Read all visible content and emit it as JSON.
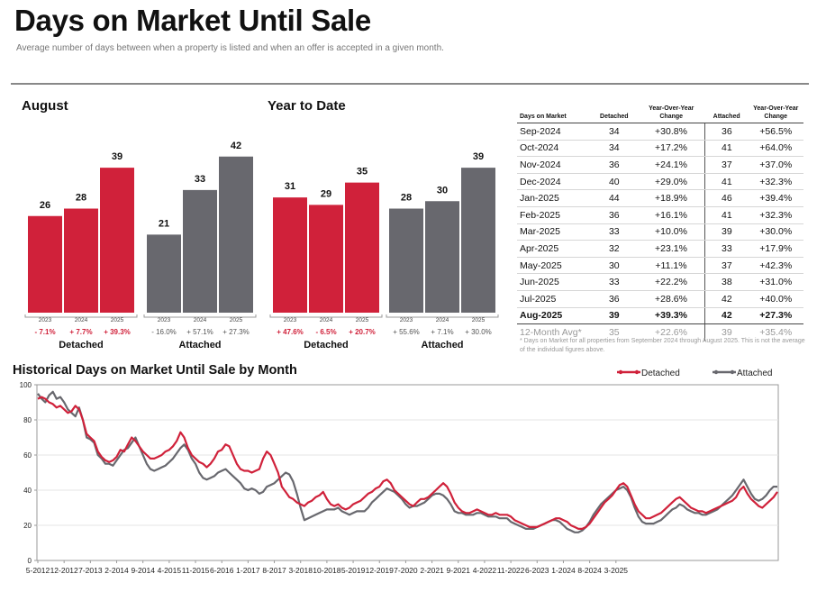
{
  "header": {
    "title": "Days on Market Until Sale",
    "subtitle": "Average number of days between when a property is listed and when an offer is accepted in a given month."
  },
  "colors": {
    "detached": "#d0213a",
    "attached": "#68686e"
  },
  "bar_panels": [
    {
      "title": "August",
      "groups": [
        {
          "label": "Detached",
          "color": "detached",
          "years": [
            "2023",
            "2024",
            "2025"
          ],
          "values": [
            26,
            28,
            39
          ],
          "changes": [
            "- 7.1%",
            "+ 7.7%",
            "+ 39.3%"
          ],
          "change_color": "red"
        },
        {
          "label": "Attached",
          "color": "attached",
          "years": [
            "2023",
            "2024",
            "2025"
          ],
          "values": [
            21,
            33,
            42
          ],
          "changes": [
            "- 16.0%",
            "+ 57.1%",
            "+ 27.3%"
          ],
          "change_color": "gray"
        }
      ]
    },
    {
      "title": "Year to Date",
      "groups": [
        {
          "label": "Detached",
          "color": "detached",
          "years": [
            "2023",
            "2024",
            "2025"
          ],
          "values": [
            31,
            29,
            35
          ],
          "changes": [
            "+ 47.6%",
            "- 6.5%",
            "+ 20.7%"
          ],
          "change_color": "red"
        },
        {
          "label": "Attached",
          "color": "attached",
          "years": [
            "2023",
            "2024",
            "2025"
          ],
          "values": [
            28,
            30,
            39
          ],
          "changes": [
            "+ 55.6%",
            "+ 7.1%",
            "+ 30.0%"
          ],
          "change_color": "gray"
        }
      ]
    }
  ],
  "table": {
    "headers": [
      "Days on Market",
      "Detached",
      "Year-Over-Year Change",
      "Attached",
      "Year-Over-Year Change"
    ],
    "rows": [
      [
        "Sep-2024",
        "34",
        "+30.8%",
        "36",
        "+56.5%"
      ],
      [
        "Oct-2024",
        "34",
        "+17.2%",
        "41",
        "+64.0%"
      ],
      [
        "Nov-2024",
        "36",
        "+24.1%",
        "37",
        "+37.0%"
      ],
      [
        "Dec-2024",
        "40",
        "+29.0%",
        "41",
        "+32.3%"
      ],
      [
        "Jan-2025",
        "44",
        "+18.9%",
        "46",
        "+39.4%"
      ],
      [
        "Feb-2025",
        "36",
        "+16.1%",
        "41",
        "+32.3%"
      ],
      [
        "Mar-2025",
        "33",
        "+10.0%",
        "39",
        "+30.0%"
      ],
      [
        "Apr-2025",
        "32",
        "+23.1%",
        "33",
        "+17.9%"
      ],
      [
        "May-2025",
        "30",
        "+11.1%",
        "37",
        "+42.3%"
      ],
      [
        "Jun-2025",
        "33",
        "+22.2%",
        "38",
        "+31.0%"
      ],
      [
        "Jul-2025",
        "36",
        "+28.6%",
        "42",
        "+40.0%"
      ],
      [
        "Aug-2025",
        "39",
        "+39.3%",
        "42",
        "+27.3%"
      ]
    ],
    "avg_row": [
      "12-Month Avg*",
      "35",
      "+22.6%",
      "39",
      "+35.4%"
    ],
    "footnote": "* Days on Market for all properties from September 2024 through August 2025. This is not the average of the individual figures above."
  },
  "chart_data": [
    {
      "type": "bar",
      "title": "August",
      "categories": [
        "2023",
        "2024",
        "2025"
      ],
      "series": [
        {
          "name": "Detached",
          "values": [
            26,
            28,
            39
          ]
        },
        {
          "name": "Attached",
          "values": [
            21,
            33,
            42
          ]
        }
      ]
    },
    {
      "type": "bar",
      "title": "Year to Date",
      "categories": [
        "2023",
        "2024",
        "2025"
      ],
      "series": [
        {
          "name": "Detached",
          "values": [
            31,
            29,
            35
          ]
        },
        {
          "name": "Attached",
          "values": [
            28,
            30,
            39
          ]
        }
      ]
    },
    {
      "type": "line",
      "title": "Historical Days on Market Until Sale by Month",
      "ylim": [
        0,
        100
      ],
      "yticks": [
        0,
        20,
        40,
        60,
        80,
        100
      ],
      "xticks": [
        "5-2012",
        "12-2012",
        "7-2013",
        "2-2014",
        "9-2014",
        "4-2015",
        "11-2015",
        "6-2016",
        "1-2017",
        "8-2017",
        "3-2018",
        "10-2018",
        "5-2019",
        "12-2019",
        "7-2020",
        "2-2021",
        "9-2021",
        "4-2022",
        "11-2022",
        "6-2023",
        "1-2024",
        "8-2024",
        "3-2025"
      ],
      "legend": [
        "Detached",
        "Attached"
      ],
      "series": [
        {
          "name": "Detached",
          "color": "detached",
          "values": [
            92,
            93,
            92,
            90,
            89,
            87,
            88,
            86,
            84,
            85,
            88,
            86,
            80,
            72,
            70,
            68,
            62,
            59,
            57,
            56,
            57,
            59,
            63,
            62,
            66,
            70,
            68,
            65,
            62,
            60,
            58,
            58,
            59,
            60,
            62,
            63,
            65,
            68,
            73,
            70,
            64,
            60,
            58,
            56,
            55,
            53,
            55,
            58,
            62,
            63,
            66,
            65,
            60,
            55,
            52,
            51,
            51,
            50,
            51,
            52,
            58,
            62,
            60,
            55,
            50,
            42,
            39,
            36,
            35,
            33,
            32,
            31,
            33,
            34,
            36,
            37,
            39,
            35,
            32,
            31,
            32,
            30,
            29,
            30,
            32,
            33,
            34,
            36,
            38,
            39,
            41,
            42,
            45,
            46,
            44,
            40,
            38,
            36,
            34,
            32,
            31,
            33,
            35,
            35,
            36,
            38,
            40,
            42,
            44,
            42,
            38,
            33,
            30,
            28,
            27,
            27,
            28,
            29,
            28,
            27,
            26,
            26,
            27,
            26,
            26,
            26,
            25,
            23,
            22,
            21,
            20,
            19,
            19,
            19,
            20,
            21,
            22,
            23,
            24,
            24,
            23,
            22,
            20,
            19,
            18,
            18,
            19,
            21,
            24,
            27,
            30,
            33,
            35,
            37,
            40,
            43,
            44,
            42,
            37,
            32,
            28,
            26,
            24,
            24,
            25,
            26,
            27,
            29,
            31,
            33,
            35,
            36,
            34,
            32,
            30,
            29,
            28,
            28,
            27,
            28,
            29,
            30,
            31,
            32,
            33,
            34,
            36,
            40,
            42,
            38,
            35,
            33,
            31,
            30,
            32,
            34,
            36,
            39
          ]
        },
        {
          "name": "Attached",
          "color": "attached",
          "values": [
            95,
            92,
            90,
            94,
            96,
            92,
            93,
            90,
            86,
            84,
            82,
            87,
            80,
            70,
            69,
            67,
            60,
            58,
            55,
            55,
            54,
            57,
            60,
            63,
            64,
            67,
            70,
            65,
            60,
            55,
            52,
            51,
            52,
            53,
            54,
            56,
            58,
            61,
            64,
            66,
            63,
            58,
            55,
            50,
            47,
            46,
            47,
            48,
            50,
            51,
            52,
            50,
            48,
            46,
            44,
            41,
            40,
            41,
            40,
            38,
            39,
            42,
            43,
            44,
            46,
            48,
            50,
            49,
            45,
            38,
            30,
            23,
            24,
            25,
            26,
            27,
            28,
            29,
            29,
            29,
            30,
            28,
            27,
            26,
            27,
            28,
            28,
            28,
            30,
            33,
            35,
            37,
            39,
            41,
            40,
            39,
            37,
            35,
            32,
            30,
            31,
            31,
            32,
            33,
            35,
            37,
            38,
            38,
            37,
            35,
            32,
            28,
            27,
            27,
            26,
            26,
            26,
            27,
            27,
            26,
            25,
            25,
            25,
            24,
            24,
            24,
            22,
            21,
            20,
            19,
            18,
            18,
            18,
            19,
            20,
            21,
            22,
            23,
            23,
            22,
            20,
            18,
            17,
            16,
            16,
            17,
            19,
            22,
            26,
            29,
            32,
            34,
            36,
            38,
            40,
            41,
            42,
            40,
            36,
            30,
            25,
            22,
            21,
            21,
            21,
            22,
            23,
            25,
            27,
            29,
            30,
            32,
            31,
            29,
            28,
            27,
            27,
            26,
            26,
            27,
            28,
            29,
            31,
            33,
            35,
            37,
            40,
            43,
            46,
            42,
            38,
            35,
            34,
            35,
            37,
            40,
            42,
            42
          ]
        }
      ]
    }
  ]
}
